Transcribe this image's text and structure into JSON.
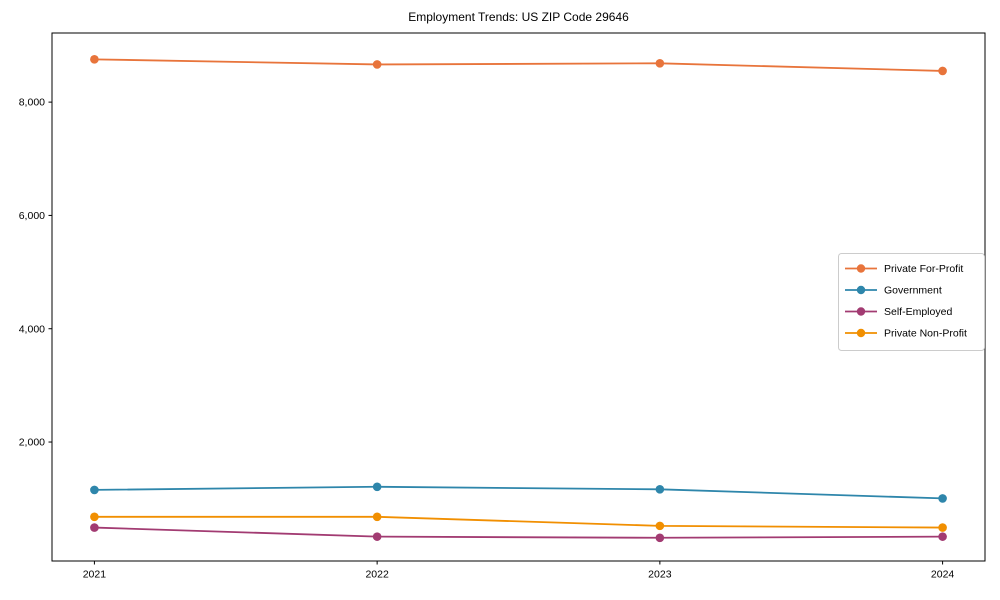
{
  "chart_data": {
    "type": "line",
    "title": "Employment Trends: US ZIP Code 29646",
    "x": [
      "2021",
      "2022",
      "2023",
      "2024"
    ],
    "series": [
      {
        "name": "Private For-Profit",
        "color": "#E8743B",
        "values": [
          8755,
          8665,
          8685,
          8550
        ]
      },
      {
        "name": "Government",
        "color": "#2E86AB",
        "values": [
          1155,
          1210,
          1165,
          1005
        ]
      },
      {
        "name": "Self-Employed",
        "color": "#A23B72",
        "values": [
          490,
          330,
          310,
          330
        ]
      },
      {
        "name": "Private Non-Profit",
        "color": "#F18F01",
        "values": [
          680,
          680,
          520,
          490
        ]
      }
    ],
    "xlabel": "",
    "ylabel": "",
    "ylim": [
      -100,
      9220
    ],
    "yticks": [
      2000,
      4000,
      6000,
      8000
    ],
    "grid": false,
    "legend_position": "center right",
    "marker": "circle",
    "frame_color": "#000000",
    "legend_border_color": "#cccccc",
    "background": "#ffffff"
  }
}
